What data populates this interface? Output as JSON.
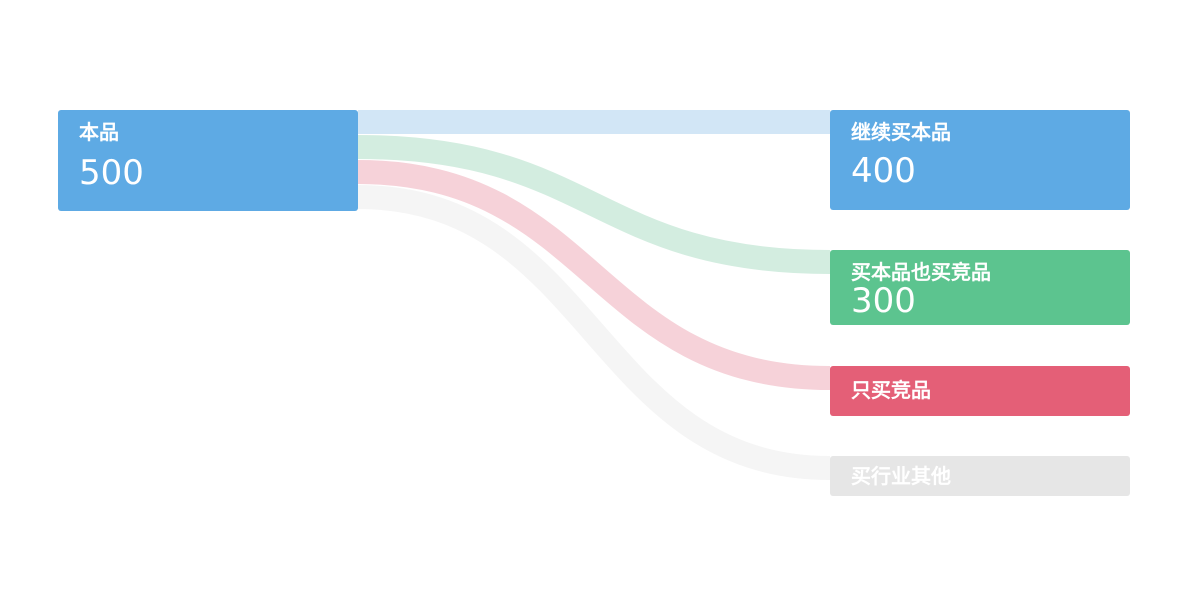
{
  "sankey": {
    "source": {
      "name": "本品",
      "value": "500",
      "color": "#5eaae4"
    },
    "targets": [
      {
        "name": "继续买本品",
        "value": "400",
        "color": "#5eaae4",
        "flow_color": "#d2e6f6"
      },
      {
        "name": "买本品也买竞品",
        "value": "300",
        "color": "#5cc48f",
        "flow_color": "#d3ede0"
      },
      {
        "name": "只买竞品",
        "color": "#e45f77",
        "flow_color": "#f6d2d9"
      },
      {
        "name": "买行业其他",
        "color": "#e6e6e6",
        "flow_color": "#f5f5f5"
      }
    ]
  }
}
